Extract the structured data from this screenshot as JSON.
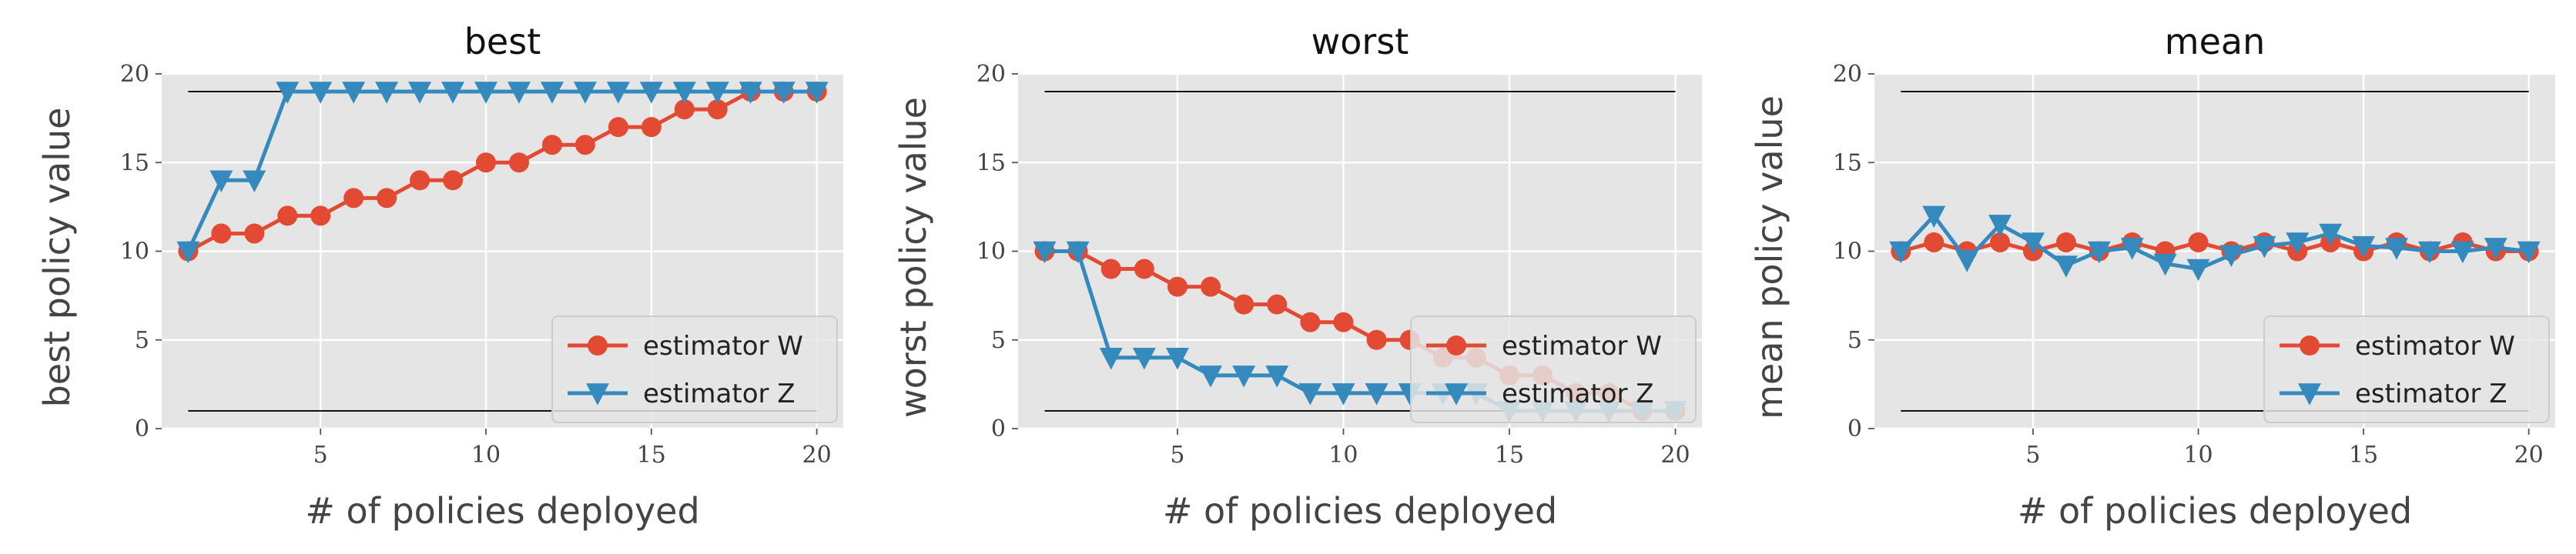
{
  "chart_data": [
    {
      "type": "line",
      "title": "best",
      "xlabel": "# of policies deployed",
      "ylabel": "best policy value",
      "xlim": [
        0.2,
        20.8
      ],
      "ylim": [
        0,
        20
      ],
      "xticks": [
        5,
        10,
        15,
        20
      ],
      "yticks": [
        0,
        5,
        10,
        15,
        20
      ],
      "grid": true,
      "legend_position": "lower-right",
      "reference_lines": [
        19,
        1
      ],
      "x": [
        1,
        2,
        3,
        4,
        5,
        6,
        7,
        8,
        9,
        10,
        11,
        12,
        13,
        14,
        15,
        16,
        17,
        18,
        19,
        20
      ],
      "series": [
        {
          "name": "estimator W",
          "color": "#e24a33",
          "marker": "circle",
          "values": [
            10,
            11,
            11,
            12,
            12,
            13,
            13,
            14,
            14,
            15,
            15,
            16,
            16,
            17,
            17,
            18,
            18,
            19,
            19,
            19
          ]
        },
        {
          "name": "estimator Z",
          "color": "#348abd",
          "marker": "triangle-down",
          "values": [
            10,
            14,
            14,
            19,
            19,
            19,
            19,
            19,
            19,
            19,
            19,
            19,
            19,
            19,
            19,
            19,
            19,
            19,
            19,
            19
          ]
        }
      ]
    },
    {
      "type": "line",
      "title": "worst",
      "xlabel": "# of policies deployed",
      "ylabel": "worst policy value",
      "xlim": [
        0.2,
        20.8
      ],
      "ylim": [
        0,
        20
      ],
      "xticks": [
        5,
        10,
        15,
        20
      ],
      "yticks": [
        0,
        5,
        10,
        15,
        20
      ],
      "grid": true,
      "legend_position": "lower-right",
      "reference_lines": [
        19,
        1
      ],
      "x": [
        1,
        2,
        3,
        4,
        5,
        6,
        7,
        8,
        9,
        10,
        11,
        12,
        13,
        14,
        15,
        16,
        17,
        18,
        19,
        20
      ],
      "series": [
        {
          "name": "estimator W",
          "color": "#e24a33",
          "marker": "circle",
          "values": [
            10,
            10,
            9,
            9,
            8,
            8,
            7,
            7,
            6,
            6,
            5,
            5,
            4,
            4,
            3,
            3,
            2,
            2,
            1,
            1
          ]
        },
        {
          "name": "estimator Z",
          "color": "#348abd",
          "marker": "triangle-down",
          "values": [
            10,
            10,
            4,
            4,
            4,
            3,
            3,
            3,
            2,
            2,
            2,
            2,
            2,
            2,
            1,
            1,
            1,
            1,
            1,
            1
          ]
        }
      ]
    },
    {
      "type": "line",
      "title": "mean",
      "xlabel": "# of policies deployed",
      "ylabel": "mean policy value",
      "xlim": [
        0.2,
        20.8
      ],
      "ylim": [
        0,
        20
      ],
      "xticks": [
        5,
        10,
        15,
        20
      ],
      "yticks": [
        0,
        5,
        10,
        15,
        20
      ],
      "grid": true,
      "legend_position": "lower-right",
      "reference_lines": [
        19,
        1
      ],
      "x": [
        1,
        2,
        3,
        4,
        5,
        6,
        7,
        8,
        9,
        10,
        11,
        12,
        13,
        14,
        15,
        16,
        17,
        18,
        19,
        20
      ],
      "series": [
        {
          "name": "estimator W",
          "color": "#e24a33",
          "marker": "circle",
          "values": [
            10,
            10.5,
            10,
            10.5,
            10,
            10.5,
            10,
            10.5,
            10,
            10.5,
            10,
            10.5,
            10,
            10.5,
            10,
            10.5,
            10,
            10.5,
            10,
            10
          ]
        },
        {
          "name": "estimator Z",
          "color": "#348abd",
          "marker": "triangle-down",
          "values": [
            10,
            12,
            9.5,
            11.5,
            10.5,
            9.2,
            10,
            10.2,
            9.3,
            9,
            9.8,
            10.3,
            10.5,
            11,
            10.3,
            10.2,
            10,
            10,
            10.2,
            10
          ]
        }
      ]
    }
  ]
}
